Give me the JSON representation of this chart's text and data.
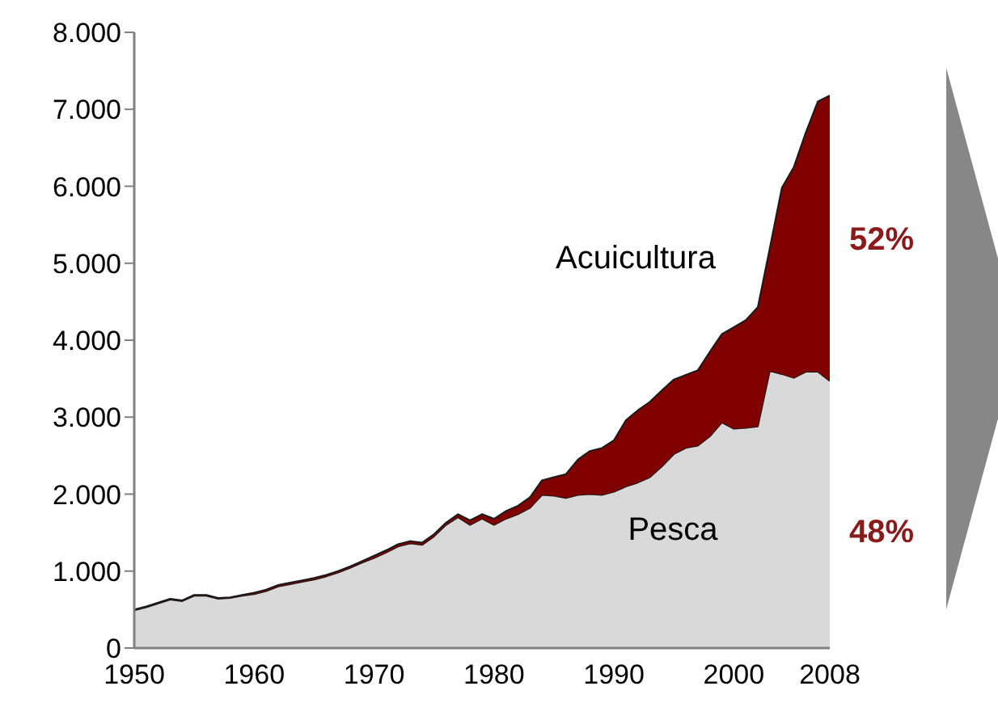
{
  "chart_data": {
    "type": "area",
    "stacked": true,
    "x": [
      1950,
      1951,
      1952,
      1953,
      1954,
      1955,
      1956,
      1957,
      1958,
      1959,
      1960,
      1961,
      1962,
      1963,
      1964,
      1965,
      1966,
      1967,
      1968,
      1969,
      1970,
      1971,
      1972,
      1973,
      1974,
      1975,
      1976,
      1977,
      1978,
      1979,
      1980,
      1981,
      1982,
      1983,
      1984,
      1985,
      1986,
      1987,
      1988,
      1989,
      1990,
      1991,
      1992,
      1993,
      1994,
      1995,
      1996,
      1997,
      1998,
      1999,
      2000,
      2001,
      2002,
      2003,
      2004,
      2005,
      2006,
      2007,
      2008
    ],
    "series": [
      {
        "name": "Pesca",
        "color": "#d9d9d9",
        "values": [
          490,
          530,
          580,
          630,
          610,
          680,
          680,
          640,
          650,
          680,
          700,
          740,
          800,
          830,
          860,
          890,
          930,
          980,
          1040,
          1110,
          1170,
          1240,
          1320,
          1360,
          1340,
          1450,
          1600,
          1700,
          1600,
          1680,
          1600,
          1680,
          1740,
          1820,
          1990,
          1980,
          1950,
          1990,
          2000,
          1990,
          2030,
          2100,
          2150,
          2220,
          2360,
          2520,
          2600,
          2630,
          2750,
          2930,
          2850,
          2860,
          2880,
          3600,
          3560,
          3510,
          3590,
          3590,
          3470
        ]
      },
      {
        "name": "Acuicultura",
        "color": "#800000",
        "values": [
          10,
          10,
          10,
          10,
          10,
          10,
          10,
          10,
          10,
          10,
          20,
          20,
          20,
          20,
          20,
          20,
          20,
          20,
          20,
          20,
          30,
          30,
          30,
          30,
          30,
          30,
          30,
          40,
          60,
          60,
          80,
          100,
          110,
          140,
          190,
          240,
          310,
          460,
          560,
          610,
          670,
          860,
          940,
          980,
          990,
          970,
          950,
          980,
          1100,
          1150,
          1320,
          1400,
          1550,
          1600,
          2420,
          2740,
          3110,
          3510,
          3710
        ]
      }
    ],
    "xlim": [
      1950,
      2008
    ],
    "xticks": [
      1950,
      1960,
      1970,
      1980,
      1990,
      2000,
      2008
    ],
    "ylim": [
      0,
      8000
    ],
    "yticks": [
      0,
      {
        "value": 1000,
        "label": "1.000"
      },
      {
        "value": 2000,
        "label": "2.000"
      },
      {
        "value": 3000,
        "label": "3.000"
      },
      {
        "value": 4000,
        "label": "4.000"
      },
      {
        "value": 5000,
        "label": "5.000"
      },
      {
        "value": 6000,
        "label": "6.000"
      },
      {
        "value": 7000,
        "label": "7.000"
      },
      {
        "value": 8000,
        "label": "8.000"
      }
    ],
    "annotations": [
      {
        "text": "52%",
        "x": 2008,
        "y": 5300
      },
      {
        "text": "48%",
        "x": 2008,
        "y": 1500
      }
    ]
  }
}
